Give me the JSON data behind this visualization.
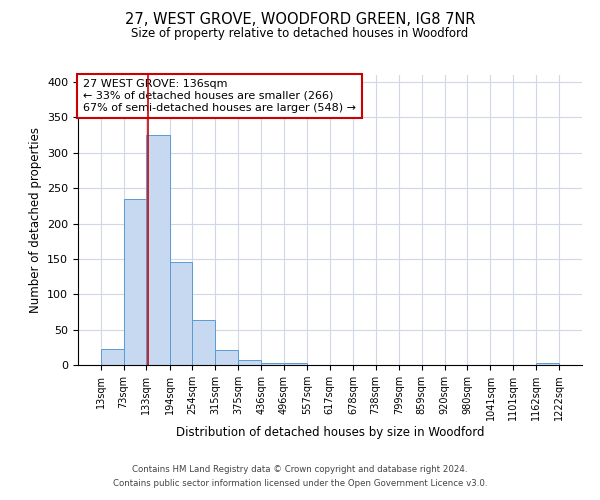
{
  "title_line1": "27, WEST GROVE, WOODFORD GREEN, IG8 7NR",
  "title_line2": "Size of property relative to detached houses in Woodford",
  "xlabel": "Distribution of detached houses by size in Woodford",
  "ylabel": "Number of detached properties",
  "bin_edges": [
    13,
    73,
    133,
    194,
    254,
    315,
    375,
    436,
    496,
    557,
    617,
    678,
    738,
    799,
    859,
    920,
    980,
    1041,
    1101,
    1162,
    1222
  ],
  "bar_heights": [
    22,
    235,
    325,
    146,
    64,
    21,
    7,
    3,
    3,
    0,
    0,
    0,
    0,
    0,
    0,
    0,
    0,
    0,
    0,
    3
  ],
  "bar_color": "#c6d9f0",
  "bar_edgecolor": "#5a9bd4",
  "vline_x": 136,
  "vline_color": "#cc0000",
  "ylim": [
    0,
    410
  ],
  "yticks": [
    0,
    50,
    100,
    150,
    200,
    250,
    300,
    350,
    400
  ],
  "annotation_title": "27 WEST GROVE: 136sqm",
  "annotation_line2": "← 33% of detached houses are smaller (266)",
  "annotation_line3": "67% of semi-detached houses are larger (548) →",
  "annotation_box_color": "#cc0000",
  "footer_line1": "Contains HM Land Registry data © Crown copyright and database right 2024.",
  "footer_line2": "Contains public sector information licensed under the Open Government Licence v3.0.",
  "background_color": "#ffffff",
  "grid_color": "#d0d8e8"
}
